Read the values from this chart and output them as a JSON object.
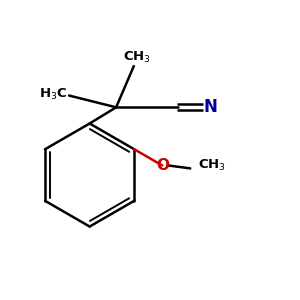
{
  "background_color": "#ffffff",
  "bond_color": "#000000",
  "nitrogen_color": "#000099",
  "oxygen_color": "#cc0000",
  "figsize": [
    3.0,
    3.0
  ],
  "dpi": 100,
  "lw": 1.8,
  "lw_inner": 1.4
}
